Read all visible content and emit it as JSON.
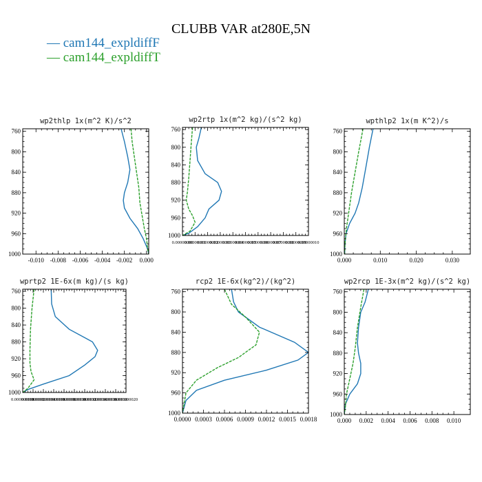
{
  "title": "CLUBB VAR at280E,5N",
  "legend": [
    {
      "label": "cam144_expldiffF",
      "color": "#1f77b4"
    },
    {
      "label": "cam144_expldiffT",
      "color": "#2ca02c"
    }
  ],
  "chart_data": [
    {
      "type": "line",
      "title": "wp2thlp  1x(m^2 K)/s^2",
      "xlim": [
        -0.0112,
        0.0002
      ],
      "ylim": [
        1000,
        755
      ],
      "yticks": [
        760,
        800,
        840,
        880,
        920,
        960,
        1000
      ],
      "yticklabels": [
        "760",
        "800",
        "840",
        "880",
        "920",
        "960",
        "1000"
      ],
      "xticks": [
        -0.01,
        -0.008,
        -0.006,
        -0.004,
        -0.002,
        0.0
      ],
      "xticklabels": [
        "-0.010",
        "-0.008",
        "-0.006",
        "-0.004",
        "-0.002",
        "0.000"
      ],
      "series": [
        {
          "name": "cam144_expldiffF",
          "color": "#1f77b4",
          "x": [
            -0.0023,
            -0.002,
            -0.0017,
            -0.0015,
            -0.0017,
            -0.002,
            -0.0021,
            -0.002,
            -0.0015,
            -0.0008,
            -0.0003,
            0.0001,
            0.0002
          ],
          "y": [
            755,
            780,
            810,
            835,
            860,
            880,
            895,
            910,
            930,
            950,
            970,
            990,
            1000
          ]
        },
        {
          "name": "cam144_expldiffT",
          "color": "#2ca02c",
          "x": [
            -0.0014,
            -0.0013,
            -0.0011,
            -0.0009,
            -0.0007,
            -0.0006,
            -0.0004,
            -0.0002,
            0.0,
            0.0001,
            0.0002
          ],
          "y": [
            755,
            780,
            810,
            840,
            870,
            900,
            925,
            950,
            970,
            990,
            1000
          ]
        }
      ]
    },
    {
      "type": "line",
      "title": "wp2rtp  1x(m^2 kg)/(s^2 kg)",
      "xlim": [
        0.0,
        1e-07
      ],
      "ylim": [
        1000,
        755
      ],
      "yticks": [
        760,
        800,
        840,
        880,
        920,
        960,
        1000
      ],
      "yticklabels": [
        "760",
        "800",
        "840",
        "880",
        "920",
        "960",
        "1000"
      ],
      "xticks": [
        0.0,
        1e-08,
        2e-08,
        3e-08,
        4e-08,
        5e-08,
        6e-08,
        7e-08,
        8e-08,
        9e-08,
        1e-07
      ],
      "xticklabels": [
        "0.00000000",
        "0.00000001",
        "0.00000002",
        "0.00000003",
        "0.00000004",
        "0.00000005",
        "0.00000006",
        "0.00000007",
        "0.00000008",
        "0.00000009",
        "0.00000010"
      ],
      "series": [
        {
          "name": "cam144_expldiffF",
          "color": "#1f77b4",
          "x": [
            1.5e-08,
            1.3e-08,
            1.1e-08,
            1.2e-08,
            1.8e-08,
            2.8e-08,
            3.1e-08,
            2.9e-08,
            2.1e-08,
            1.8e-08,
            1.2e-08,
            5e-09,
            0.0
          ],
          "y": [
            755,
            780,
            800,
            830,
            860,
            880,
            900,
            920,
            940,
            960,
            980,
            995,
            1000
          ]
        },
        {
          "name": "cam144_expldiffT",
          "color": "#2ca02c",
          "x": [
            8e-09,
            7e-09,
            6e-09,
            5e-09,
            4e-09,
            3e-09,
            5e-09,
            8e-09,
            1e-08,
            6e-09,
            0.0
          ],
          "y": [
            755,
            790,
            830,
            870,
            900,
            920,
            940,
            955,
            970,
            990,
            1000
          ]
        }
      ]
    },
    {
      "type": "line",
      "title": "wpthlp2  1x(m K^2)/s",
      "xlim": [
        0.0,
        0.035
      ],
      "ylim": [
        1000,
        755
      ],
      "yticks": [
        760,
        800,
        840,
        880,
        920,
        960,
        1000
      ],
      "yticklabels": [
        "760",
        "800",
        "840",
        "880",
        "920",
        "960",
        "1000"
      ],
      "xticks": [
        0.0,
        0.01,
        0.02,
        0.03
      ],
      "xticklabels": [
        "0.000",
        "0.010",
        "0.020",
        "0.030"
      ],
      "series": [
        {
          "name": "cam144_expldiffF",
          "color": "#1f77b4",
          "x": [
            0.008,
            0.007,
            0.006,
            0.005,
            0.004,
            0.003,
            0.0015,
            0.0005,
            0.0002,
            0.0001
          ],
          "y": [
            755,
            790,
            830,
            870,
            900,
            920,
            940,
            960,
            980,
            1000
          ]
        },
        {
          "name": "cam144_expldiffT",
          "color": "#2ca02c",
          "x": [
            0.0052,
            0.004,
            0.003,
            0.002,
            0.0012,
            0.0006,
            0.0002,
            0.0001
          ],
          "y": [
            755,
            800,
            840,
            880,
            920,
            950,
            980,
            1000
          ]
        }
      ]
    },
    {
      "type": "line",
      "title": "wprtp2  1E-6x(m kg)/(s kg)",
      "xlim": [
        0.0,
        2e-08
      ],
      "ylim": [
        1000,
        755
      ],
      "yticks": [
        760,
        800,
        840,
        880,
        920,
        960,
        1000
      ],
      "yticklabels": [
        "760",
        "800",
        "840",
        "880",
        "920",
        "960",
        "1000"
      ],
      "xticks": [
        0.0,
        2e-09,
        4e-09,
        6e-09,
        8e-09,
        1e-08,
        1.2e-08,
        1.4e-08,
        1.6e-08,
        1.8e-08,
        2e-08
      ],
      "xticklabels": [
        "0.000000000",
        "0.000000002",
        "0.000000004",
        "0.000000006",
        "0.000000008",
        "0.000000010",
        "0.000000012",
        "0.000000014",
        "0.000000016",
        "0.000000018",
        "0.000000020"
      ],
      "series": [
        {
          "name": "cam144_expldiffF",
          "color": "#1f77b4",
          "x": [
            5.5e-09,
            5.6e-09,
            6.3e-09,
            9e-09,
            1.35e-08,
            1.45e-08,
            1.4e-08,
            1.2e-08,
            9e-09,
            4e-09,
            1e-09,
            0.0
          ],
          "y": [
            755,
            790,
            820,
            850,
            880,
            900,
            915,
            935,
            960,
            980,
            993,
            1000
          ]
        },
        {
          "name": "cam144_expldiffT",
          "color": "#2ca02c",
          "x": [
            2.2e-09,
            1.8e-09,
            1.5e-09,
            1.4e-09,
            1.4e-09,
            1.6e-09,
            2.2e-09,
            1e-09,
            0.0
          ],
          "y": [
            755,
            800,
            850,
            900,
            930,
            950,
            970,
            990,
            1000
          ]
        }
      ]
    },
    {
      "type": "line",
      "title": "rcp2  1E-6x(kg^2)/(kg^2)",
      "xlim": [
        0.0,
        0.0018
      ],
      "ylim": [
        1000,
        755
      ],
      "yticks": [
        760,
        800,
        840,
        880,
        920,
        960,
        1000
      ],
      "yticklabels": [
        "760",
        "800",
        "840",
        "880",
        "920",
        "960",
        "1000"
      ],
      "xticks": [
        0.0,
        0.0003,
        0.0006,
        0.0009,
        0.0012,
        0.0015,
        0.0018
      ],
      "xticklabels": [
        "0.0000",
        "0.0003",
        "0.0006",
        "0.0009",
        "0.0012",
        "0.0015",
        "0.0018"
      ],
      "series": [
        {
          "name": "cam144_expldiffF",
          "color": "#1f77b4",
          "x": [
            0.0007,
            0.00073,
            0.0008,
            0.0011,
            0.0016,
            0.0018,
            0.00165,
            0.0012,
            0.0006,
            0.0002,
            5e-05,
            0.0
          ],
          "y": [
            755,
            780,
            800,
            830,
            860,
            880,
            895,
            915,
            935,
            955,
            975,
            1000
          ]
        },
        {
          "name": "cam144_expldiffT",
          "color": "#2ca02c",
          "x": [
            0.0006,
            0.0007,
            0.0009,
            0.0011,
            0.00105,
            0.0008,
            0.0005,
            0.0002,
            5e-05,
            0.0
          ],
          "y": [
            755,
            785,
            810,
            840,
            865,
            890,
            910,
            935,
            960,
            1000
          ]
        }
      ]
    },
    {
      "type": "line",
      "title": "wp2rcp  1E-3x(m^2 kg)/(s^2 kg)",
      "xlim": [
        0.0,
        0.0115
      ],
      "ylim": [
        1000,
        755
      ],
      "yticks": [
        760,
        800,
        840,
        880,
        920,
        960,
        1000
      ],
      "yticklabels": [
        "760",
        "800",
        "840",
        "880",
        "920",
        "960",
        "1000"
      ],
      "xticks": [
        0.0,
        0.002,
        0.004,
        0.006,
        0.008,
        0.01
      ],
      "xticklabels": [
        "0.000",
        "0.002",
        "0.004",
        "0.006",
        "0.008",
        "0.010"
      ],
      "series": [
        {
          "name": "cam144_expldiffF",
          "color": "#1f77b4",
          "x": [
            0.0022,
            0.0019,
            0.0015,
            0.0013,
            0.0012,
            0.0013,
            0.0015,
            0.0015,
            0.0012,
            0.0005,
            0.0001,
            0.0
          ],
          "y": [
            755,
            780,
            800,
            830,
            860,
            880,
            900,
            920,
            940,
            960,
            980,
            1000
          ]
        },
        {
          "name": "cam144_expldiffT",
          "color": "#2ca02c",
          "x": [
            0.0018,
            0.0015,
            0.0012,
            0.001,
            0.0008,
            0.0005,
            0.0002,
            0.0001,
            0.0
          ],
          "y": [
            755,
            790,
            830,
            870,
            900,
            930,
            960,
            985,
            1000
          ]
        }
      ]
    }
  ]
}
